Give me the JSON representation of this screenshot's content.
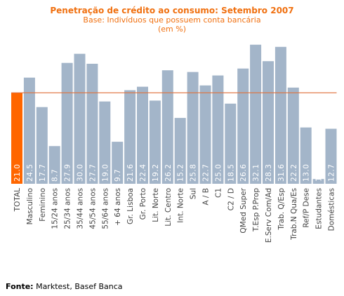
{
  "chart_data": {
    "type": "bar",
    "title": "Penetração de crédito ao consumo: Setembro 2007",
    "subtitle": "Base: Indivíduos que possuem conta bancária",
    "unit_label": "(em %)",
    "categories": [
      "TOTAL",
      "Masculino",
      "Feminino",
      "15/24 anos",
      "25/34 anos",
      "35/44 anos",
      "45/54 anos",
      "55/64 anos",
      "+ 64 anos",
      "Gr. Lisboa",
      "Gr. Porto",
      "Lit. Norte",
      "Lit. Centro",
      "Int. Norte",
      "Sul",
      "A / B",
      "C1",
      "C2 / D",
      "QMed Super",
      "T.Esp P.Prop",
      "E.Serv Com/Ad",
      "Trab. Q/Esp",
      "Trab.N Qua/Es",
      "Ref/P Dese",
      "Estudantes",
      "Domésticas"
    ],
    "values": [
      21.0,
      24.5,
      17.7,
      8.7,
      27.9,
      30.0,
      27.7,
      19.0,
      9.7,
      21.6,
      22.4,
      19.2,
      26.2,
      15.2,
      25.8,
      22.7,
      25.0,
      18.5,
      26.6,
      32.1,
      28.3,
      31.6,
      22.2,
      13.0,
      1.1,
      12.7
    ],
    "value_labels": [
      "21.0",
      "24.5",
      "17.7",
      "8.7",
      "27.9",
      "30.0",
      "27.7",
      "19.0",
      "9.7",
      "21.6",
      "22.4",
      "19.2",
      "26.2",
      "15.2",
      "25.8",
      "22.7",
      "25.0",
      "18.5",
      "26.6",
      "32.1",
      "28.3",
      "31.6",
      "22.2",
      "13.0",
      "1.1",
      "12.7"
    ],
    "reference_line": 21.0,
    "ylim": [
      0,
      34
    ],
    "grid": false,
    "colors": {
      "total": "#ff6600",
      "bars": "#a3b5c9",
      "reference_line": "#e0703a",
      "title": "#f07010"
    }
  },
  "source": {
    "label": "Fonte:",
    "text": "Marktest, Basef Banca"
  }
}
